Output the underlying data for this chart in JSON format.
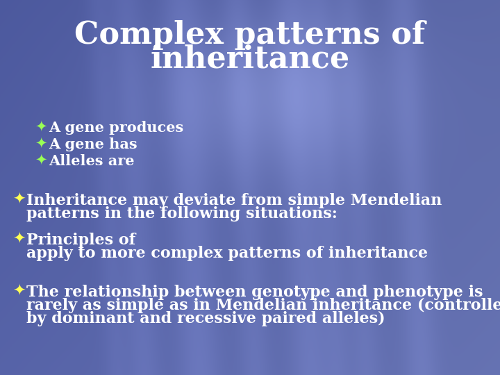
{
  "title_line1": "Complex patterns of",
  "title_line2": "inheritance",
  "title_color": "#ffffff",
  "title_fontsize": 32,
  "text_color": "#ffffff",
  "bullet_color_main": "#ffff55",
  "bullet_color_sub": "#99ff55",
  "bullet_symbol": "✦",
  "body_fontsize": 16,
  "sub_fontsize": 15,
  "bullets": [
    {
      "level": 0,
      "symbol": "✦",
      "symbol_color": "#ffff55",
      "lines": [
        "The relationship between genotype and phenotype is",
        "rarely as simple as in Mendelian inheritance (controlled",
        "by dominant and recessive paired alleles)"
      ]
    },
    {
      "level": 0,
      "symbol": "✦",
      "symbol_color": "#ffff55",
      "lines": [
        "Principles of",
        "apply to more complex patterns of inheritance"
      ]
    },
    {
      "level": 0,
      "symbol": "✦",
      "symbol_color": "#ffff55",
      "lines": [
        "Inheritance may deviate from simple Mendelian",
        "patterns in the following situations:"
      ]
    },
    {
      "level": 1,
      "symbol": "✦",
      "symbol_color": "#99ff55",
      "lines": [
        "Alleles are"
      ]
    },
    {
      "level": 1,
      "symbol": "✦",
      "symbol_color": "#99ff55",
      "lines": [
        "A gene has"
      ]
    },
    {
      "level": 1,
      "symbol": "✦",
      "symbol_color": "#99ff55",
      "lines": [
        "A gene produces"
      ]
    }
  ]
}
